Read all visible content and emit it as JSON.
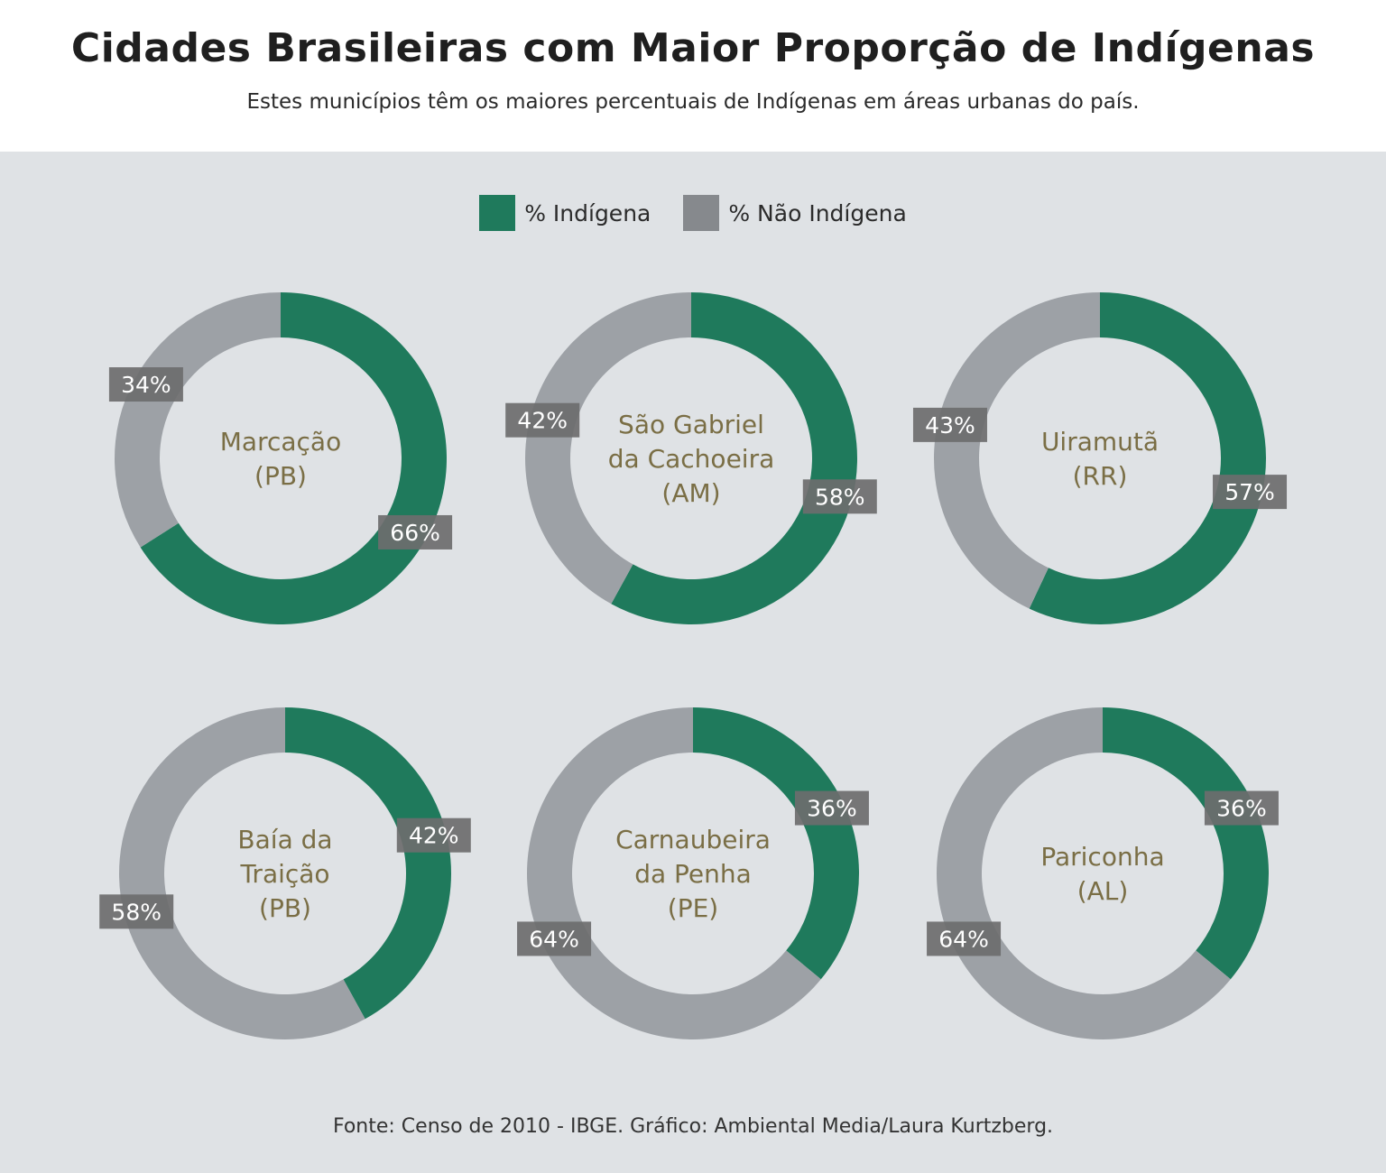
{
  "header": {
    "title": "Cidades Brasileiras com Maior Proporção de Indígenas",
    "subtitle": "Estes municípios têm os maiores percentuais de Indígenas em áreas urbanas do país."
  },
  "legend": {
    "items": [
      {
        "label": "% Indígena",
        "color": "#1f7a5c"
      },
      {
        "label": "% Não Indígena",
        "color": "#86898d"
      }
    ]
  },
  "colors": {
    "indigenous": "#1f7a5c",
    "non_indigenous": "#9da1a6",
    "label_box": "#6c6c6e",
    "city_text": "#7a6e45",
    "panel_bg": "#dfe2e5"
  },
  "chart_data": {
    "type": "donut",
    "series_names": [
      "% Indígena",
      "% Não Indígena"
    ],
    "charts": [
      {
        "city": [
          "Marcação",
          "(PB)"
        ],
        "indigenous_pct": 66,
        "non_indigenous_pct": 34,
        "labels": [
          "66%",
          "34%"
        ]
      },
      {
        "city": [
          "São Gabriel",
          "da Cachoeira",
          "(AM)"
        ],
        "indigenous_pct": 58,
        "non_indigenous_pct": 42,
        "labels": [
          "58%",
          "42%"
        ]
      },
      {
        "city": [
          "Uiramutã",
          "(RR)"
        ],
        "indigenous_pct": 57,
        "non_indigenous_pct": 43,
        "labels": [
          "57%",
          "43%"
        ]
      },
      {
        "city": [
          "Baía da",
          "Traição",
          "(PB)"
        ],
        "indigenous_pct": 42,
        "non_indigenous_pct": 58,
        "labels": [
          "42%",
          "58%"
        ]
      },
      {
        "city": [
          "Carnaubeira",
          "da Penha",
          "(PE)"
        ],
        "indigenous_pct": 36,
        "non_indigenous_pct": 64,
        "labels": [
          "36%",
          "64%"
        ]
      },
      {
        "city": [
          "Pariconha",
          "(AL)"
        ],
        "indigenous_pct": 36,
        "non_indigenous_pct": 64,
        "labels": [
          "36%",
          "64%"
        ]
      }
    ]
  },
  "footer": {
    "source": "Fonte: Censo de 2010 - IBGE. Gráfico: Ambiental Media/Laura Kurtzberg."
  }
}
